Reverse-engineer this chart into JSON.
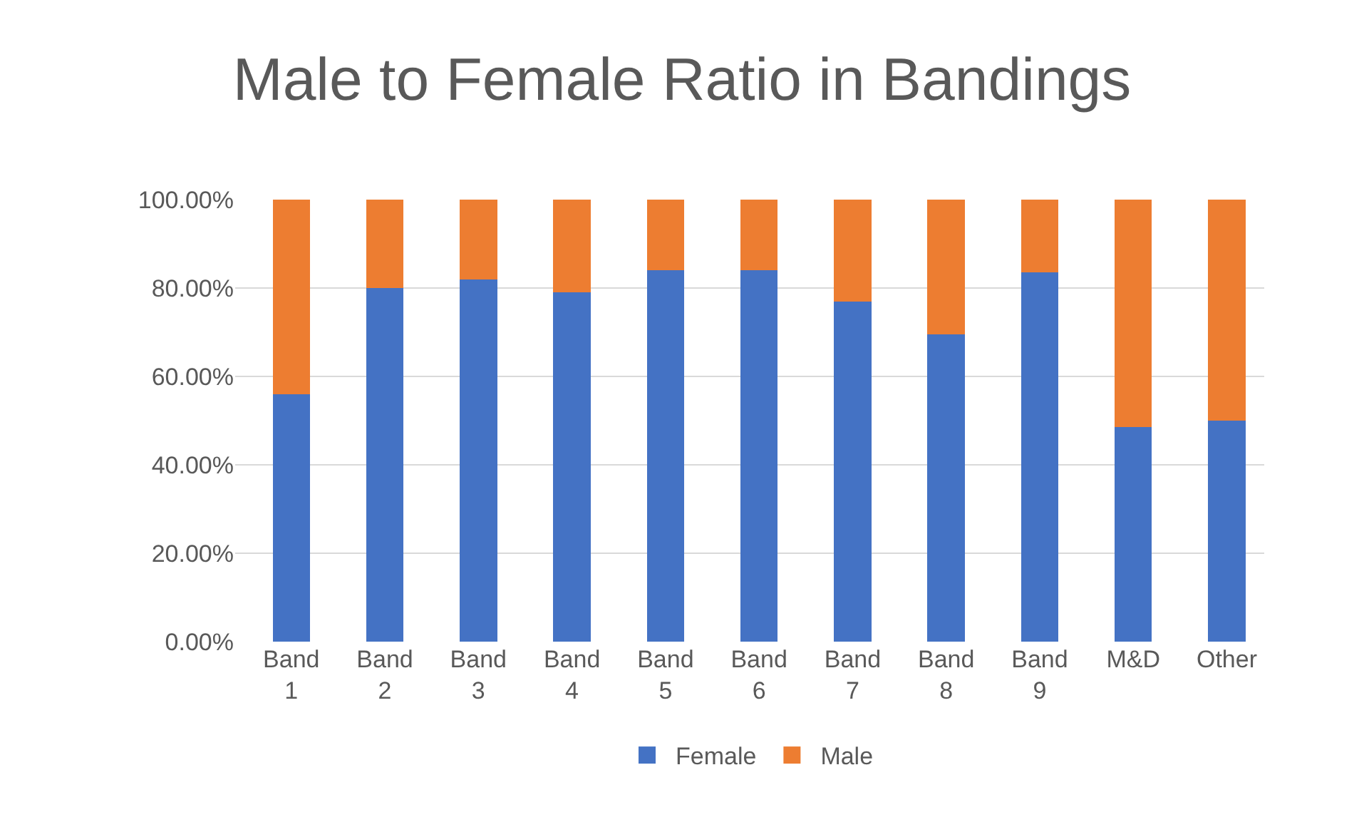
{
  "chart_data": {
    "type": "bar",
    "title": "Male to Female Ratio in Bandings",
    "stacked": true,
    "categories": [
      "Band 1",
      "Band 2",
      "Band 3",
      "Band 4",
      "Band 5",
      "Band 6",
      "Band 7",
      "Band 8",
      "Band 9",
      "M&D",
      "Other"
    ],
    "series": [
      {
        "name": "Female",
        "color": "#4472c4",
        "values": [
          56,
          80,
          82,
          79,
          84,
          84,
          77,
          69.5,
          83.5,
          48.5,
          50
        ]
      },
      {
        "name": "Male",
        "color": "#ed7d31",
        "values": [
          44,
          20,
          18,
          21,
          16,
          16,
          23,
          30.5,
          16.5,
          51.5,
          50
        ]
      }
    ],
    "ylim": [
      0,
      100
    ],
    "yticks": [
      {
        "value": 0,
        "label": "0.00%"
      },
      {
        "value": 20,
        "label": "20.00%"
      },
      {
        "value": 40,
        "label": "40.00%"
      },
      {
        "value": 60,
        "label": "60.00%"
      },
      {
        "value": 80,
        "label": "80.00%"
      },
      {
        "value": 100,
        "label": "100.00%"
      }
    ],
    "grid": "y",
    "legend": "bottom"
  }
}
